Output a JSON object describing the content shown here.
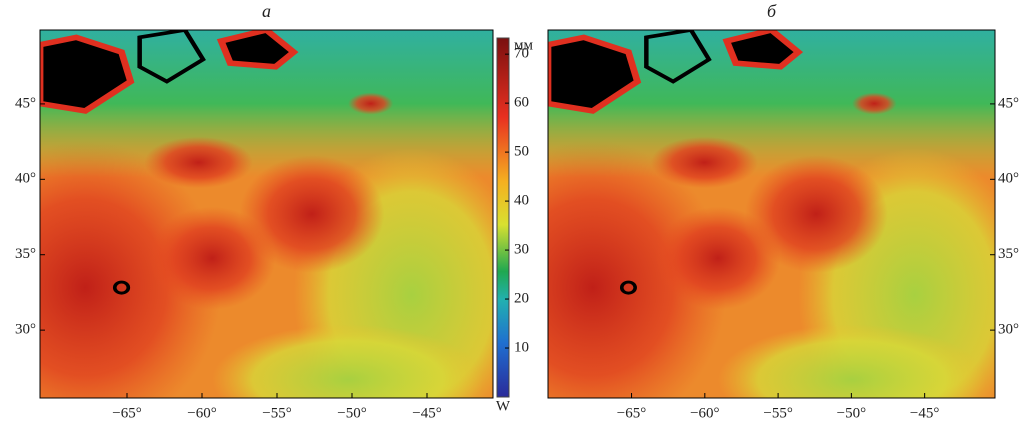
{
  "panels": [
    {
      "title": "а",
      "xlim": [
        -70.8,
        -40.6
      ],
      "ylim": [
        25.5,
        49.9
      ],
      "xticks": [
        {
          "value": -65,
          "label": "−65°"
        },
        {
          "value": -60,
          "label": "−60°"
        },
        {
          "value": -55,
          "label": "−55°"
        },
        {
          "value": -50,
          "label": "−50°"
        },
        {
          "value": -45,
          "label": "−45°"
        }
      ],
      "yticks": [
        {
          "value": 30,
          "label": "30°"
        },
        {
          "value": 35,
          "label": "35°"
        },
        {
          "value": 40,
          "label": "40°"
        },
        {
          "value": 45,
          "label": "45°"
        }
      ]
    },
    {
      "title": "б",
      "xlim": [
        -70.7,
        -40.2
      ],
      "ylim": [
        25.5,
        49.9
      ],
      "xticks": [
        {
          "value": -65,
          "label": "−65°"
        },
        {
          "value": -60,
          "label": "−60°"
        },
        {
          "value": -55,
          "label": "−55°"
        },
        {
          "value": -50,
          "label": "−50°"
        },
        {
          "value": -45,
          "label": "−45°"
        }
      ],
      "yticks": [
        {
          "value": 30,
          "label": "30°"
        },
        {
          "value": 35,
          "label": "35°"
        },
        {
          "value": 40,
          "label": "40°"
        },
        {
          "value": 45,
          "label": "45°"
        }
      ]
    }
  ],
  "colorbar": {
    "unit": "мм",
    "bottom_label": "W",
    "clim": [
      0,
      73.3
    ],
    "ticks": [
      10,
      20,
      30,
      40,
      50,
      60,
      70
    ]
  }
}
